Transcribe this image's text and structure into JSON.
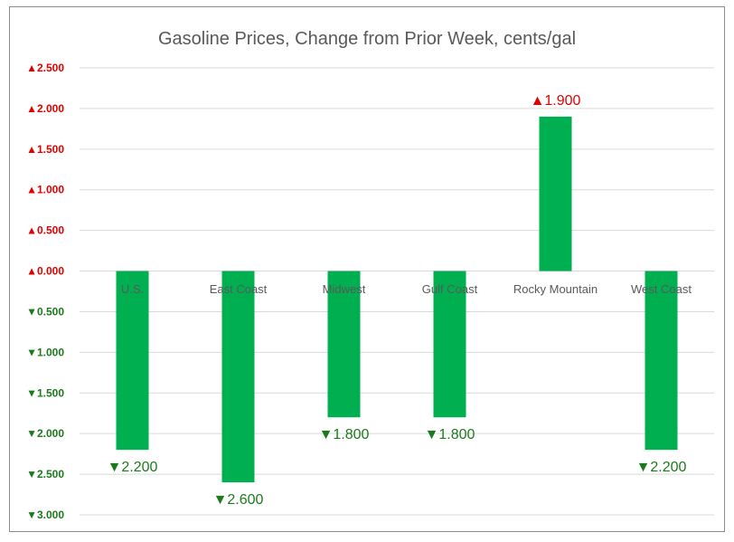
{
  "chart_data": {
    "type": "bar",
    "title": "Gasoline Prices, Change from Prior Week, cents/gal",
    "categories": [
      "U.S.",
      "East Coast",
      "Midwest",
      "Gulf Coast",
      "Rocky Mountain",
      "West Coast"
    ],
    "values": [
      -2.2,
      -2.6,
      -1.8,
      -1.8,
      1.9,
      -2.2
    ],
    "data_labels": [
      "▼2.200",
      "▼2.600",
      "▼1.800",
      "▼1.800",
      "▲1.900",
      "▼2.200"
    ],
    "ylim": [
      -3.0,
      2.5
    ],
    "yticks": [
      2.5,
      2.0,
      1.5,
      1.0,
      0.5,
      0.0,
      -0.5,
      -1.0,
      -1.5,
      -2.0,
      -2.5,
      -3.0
    ],
    "ytick_labels": [
      "▲2.500",
      "▲2.000",
      "▲1.500",
      "▲1.000",
      "▲0.500",
      "▲0.000",
      "▼0.500",
      "▼1.000",
      "▼1.500",
      "▼2.000",
      "▼2.500",
      "▼3.000"
    ],
    "grid": true,
    "legend": "none",
    "colors": {
      "bar": "#00b050",
      "up": "#e00000",
      "down": "#1b7a1b",
      "grid": "#d9d9d9",
      "title": "#595959",
      "category": "#595959"
    }
  }
}
